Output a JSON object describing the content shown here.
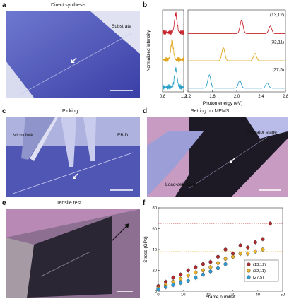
{
  "panels": {
    "a": {
      "label": "a",
      "title": "Direct synthesis",
      "annotations": {
        "substrate": "Substrate"
      }
    },
    "b": {
      "label": "b",
      "ylabel": "Normalized intensity",
      "xlabel": "Photon energy (eV)",
      "left_ticks": [
        "0.8",
        "1.2"
      ],
      "right_ticks": [
        "1.2",
        "1.6",
        "2.0",
        "2.4",
        "2.8"
      ],
      "series_labels": [
        "(13,12)",
        "(32,11)",
        "(27,5)"
      ],
      "colors": [
        "#c8242c",
        "#e0a51b",
        "#2aa0c8"
      ]
    },
    "c": {
      "label": "c",
      "title": "Picking",
      "annotations": {
        "fork": "Micro fork",
        "ebid": "EBID"
      }
    },
    "d": {
      "label": "d",
      "title": "Setting on MEMS",
      "annotations": {
        "actuator": "Actuator stage",
        "loadcell": "Load-cell stage"
      }
    },
    "e": {
      "label": "e",
      "title": "Tensile test"
    },
    "f": {
      "label": "f",
      "ylabel": "Stress (GPa)",
      "xlabel": "Frame number",
      "xticks": [
        "0",
        "10",
        "20",
        "30",
        "40",
        "50"
      ],
      "yticks": [
        "0",
        "20",
        "40",
        "60",
        "80"
      ],
      "legend": [
        "(13,12)",
        "(32,11)",
        "(27,5)"
      ],
      "colors": [
        "#b0282c",
        "#e8b22a",
        "#2e9bd6"
      ]
    }
  },
  "chart_data": [
    {
      "type": "line",
      "panel": "b",
      "xlabel": "Photon energy (eV)",
      "ylabel": "Normalized intensity",
      "xlim_left": [
        0.8,
        1.2
      ],
      "xlim_right": [
        1.2,
        2.8
      ],
      "series": [
        {
          "name": "(13,12)",
          "peaks_eV": [
            1.05,
            2.08,
            2.55
          ]
        },
        {
          "name": "(32,11)",
          "peaks_eV": [
            0.98,
            1.78,
            2.3
          ]
        },
        {
          "name": "(27,5)",
          "peaks_eV": [
            1.05,
            1.55,
            2.05,
            2.5
          ]
        }
      ]
    },
    {
      "type": "scatter",
      "panel": "f",
      "xlabel": "Frame number",
      "ylabel": "Stress (GPa)",
      "xlim": [
        0,
        50
      ],
      "ylim": [
        0,
        80
      ],
      "series": [
        {
          "name": "(13,12)",
          "x": [
            0,
            3,
            6,
            9,
            12,
            15,
            18,
            21,
            24,
            27,
            30,
            33,
            36,
            39,
            42,
            45
          ],
          "y": [
            5,
            9,
            13,
            16,
            20,
            23,
            26,
            28,
            33,
            40,
            36,
            44,
            42,
            47,
            50,
            65
          ]
        },
        {
          "name": "(32,11)",
          "x": [
            0,
            3,
            6,
            9,
            12,
            15,
            18,
            21,
            24,
            27,
            30,
            33,
            36,
            39,
            42
          ],
          "y": [
            3,
            6,
            9,
            12,
            15,
            18,
            20,
            23,
            27,
            31,
            33,
            36,
            36,
            38,
            40
          ]
        },
        {
          "name": "(27,5)",
          "x": [
            0,
            3,
            6,
            9,
            12,
            15,
            18,
            21,
            24,
            27
          ],
          "y": [
            2,
            4,
            6,
            8,
            10,
            13,
            16,
            19,
            22,
            26
          ]
        }
      ],
      "reference_levels": [
        65,
        38,
        26
      ]
    }
  ]
}
